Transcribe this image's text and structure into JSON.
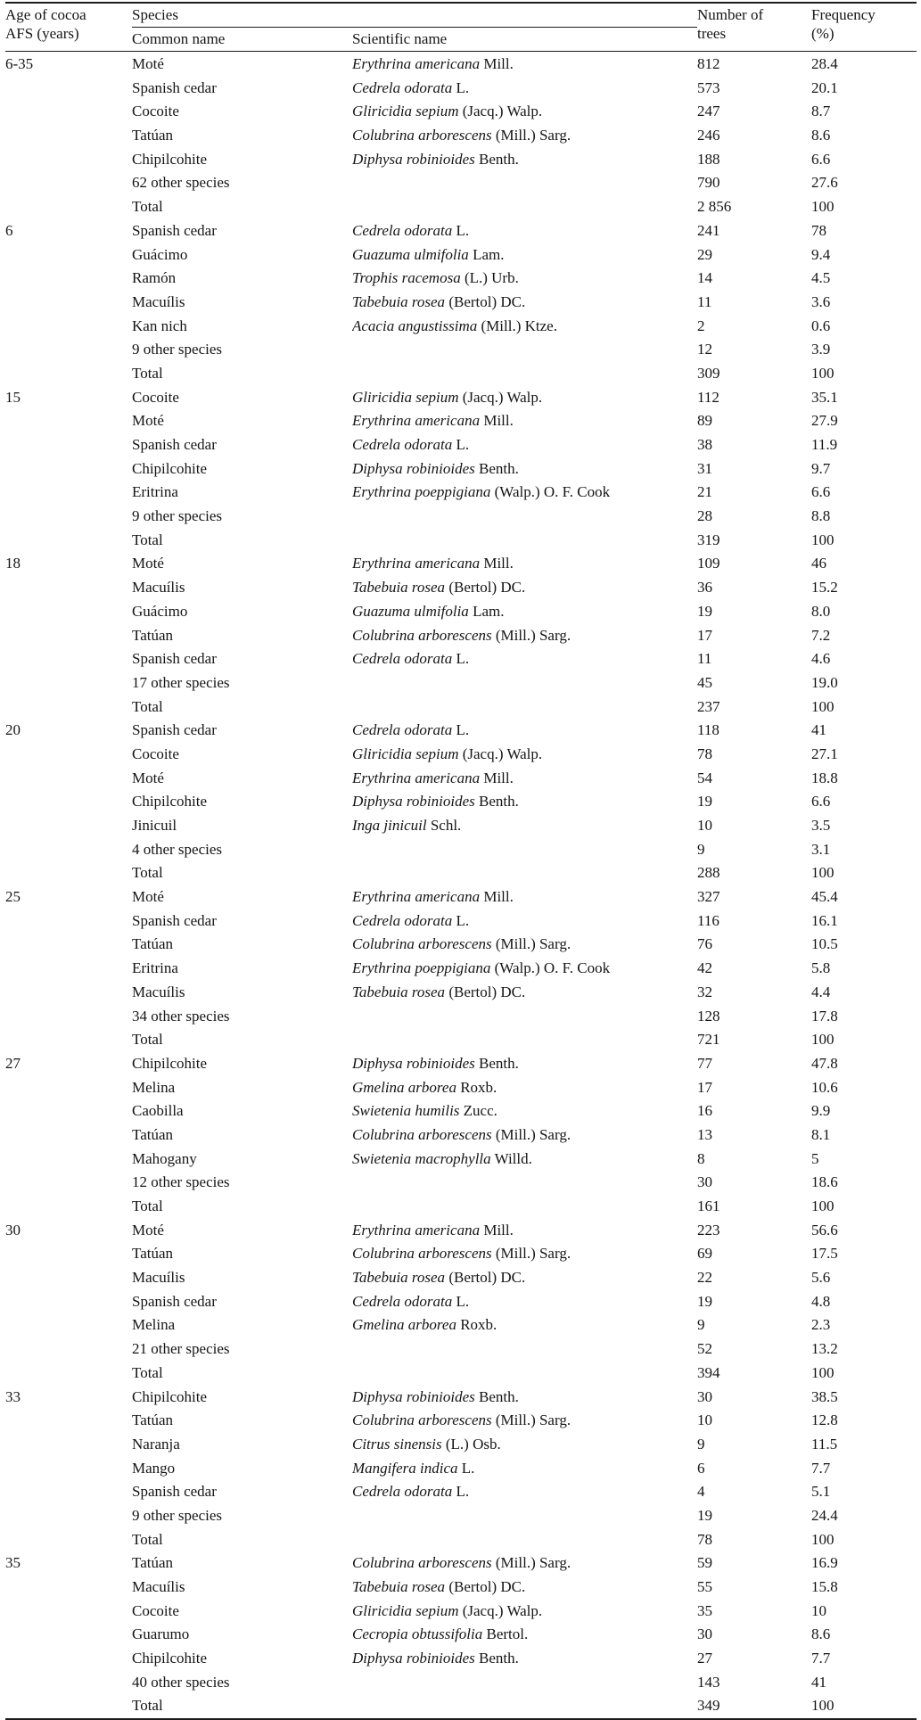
{
  "table": {
    "headers": {
      "age": "Age of cocoa AFS (years)",
      "species": "Species",
      "common_name": "Common name",
      "scientific_name": "Scientific name",
      "number_of_trees": "Number of trees",
      "frequency": "Frequency (%)"
    },
    "groups": [
      {
        "age": "6-35",
        "rows": [
          {
            "common": "Moté",
            "sci": "Erythrina americana",
            "auth": "Mill.",
            "trees": "812",
            "freq": "28.4"
          },
          {
            "common": "Spanish cedar",
            "sci": "Cedrela odorata",
            "auth": "L.",
            "trees": "573",
            "freq": "20.1"
          },
          {
            "common": "Cocoite",
            "sci": "Gliricidia sepium",
            "auth": "(Jacq.) Walp.",
            "trees": "247",
            "freq": "8.7"
          },
          {
            "common": "Tatúan",
            "sci": "Colubrina arborescens",
            "auth": "(Mill.) Sarg.",
            "trees": "246",
            "freq": "8.6"
          },
          {
            "common": "Chipilcohite",
            "sci": "Diphysa robinioides",
            "auth": "Benth.",
            "trees": "188",
            "freq": "6.6"
          },
          {
            "common": "62 other species",
            "sci": "",
            "auth": "",
            "trees": "790",
            "freq": "27.6"
          },
          {
            "common": "Total",
            "sci": "",
            "auth": "",
            "trees": "2 856",
            "freq": "100"
          }
        ]
      },
      {
        "age": "6",
        "rows": [
          {
            "common": "Spanish cedar",
            "sci": "Cedrela odorata",
            "auth": "L.",
            "trees": "241",
            "freq": "78"
          },
          {
            "common": "Guácimo",
            "sci": "Guazuma ulmifolia",
            "auth": "Lam.",
            "trees": "29",
            "freq": "9.4"
          },
          {
            "common": "Ramón",
            "sci": "Trophis racemosa",
            "auth": "(L.) Urb.",
            "trees": "14",
            "freq": "4.5"
          },
          {
            "common": "Macuílis",
            "sci": "Tabebuia rosea",
            "auth": "(Bertol) DC.",
            "trees": "11",
            "freq": "3.6"
          },
          {
            "common": "Kan nich",
            "sci": "Acacia angustissima",
            "auth": "(Mill.) Ktze.",
            "trees": "2",
            "freq": "0.6"
          },
          {
            "common": "9 other species",
            "sci": "",
            "auth": "",
            "trees": "12",
            "freq": "3.9"
          },
          {
            "common": "Total",
            "sci": "",
            "auth": "",
            "trees": "309",
            "freq": "100"
          }
        ]
      },
      {
        "age": "15",
        "rows": [
          {
            "common": "Cocoite",
            "sci": "Gliricidia sepium",
            "auth": "(Jacq.) Walp.",
            "trees": "112",
            "freq": "35.1"
          },
          {
            "common": "Moté",
            "sci": "Erythrina americana",
            "auth": "Mill.",
            "trees": "89",
            "freq": "27.9"
          },
          {
            "common": "Spanish cedar",
            "sci": "Cedrela odorata",
            "auth": "L.",
            "trees": "38",
            "freq": "11.9"
          },
          {
            "common": "Chipilcohite",
            "sci": "Diphysa robinioides",
            "auth": "Benth.",
            "trees": "31",
            "freq": "9.7"
          },
          {
            "common": "Eritrina",
            "sci": "Erythrina poeppigiana",
            "auth": "(Walp.) O. F. Cook",
            "trees": "21",
            "freq": "6.6"
          },
          {
            "common": "9 other species",
            "sci": "",
            "auth": "",
            "trees": "28",
            "freq": "8.8"
          },
          {
            "common": "Total",
            "sci": "",
            "auth": "",
            "trees": "319",
            "freq": "100"
          }
        ]
      },
      {
        "age": "18",
        "rows": [
          {
            "common": "Moté",
            "sci": "Erythrina americana",
            "auth": "Mill.",
            "trees": "109",
            "freq": "46"
          },
          {
            "common": "Macuílis",
            "sci": "Tabebuia rosea",
            "auth": "(Bertol) DC.",
            "trees": "36",
            "freq": "15.2"
          },
          {
            "common": "Guácimo",
            "sci": "Guazuma ulmifolia",
            "auth": "Lam.",
            "trees": "19",
            "freq": "8.0"
          },
          {
            "common": "Tatúan",
            "sci": "Colubrina arborescens",
            "auth": "(Mill.) Sarg.",
            "trees": "17",
            "freq": "7.2"
          },
          {
            "common": "Spanish cedar",
            "sci": "Cedrela odorata",
            "auth": "L.",
            "trees": "11",
            "freq": "4.6"
          },
          {
            "common": "17 other species",
            "sci": "",
            "auth": "",
            "trees": "45",
            "freq": "19.0"
          },
          {
            "common": "Total",
            "sci": "",
            "auth": "",
            "trees": "237",
            "freq": "100"
          }
        ]
      },
      {
        "age": "20",
        "rows": [
          {
            "common": "Spanish cedar",
            "sci": "Cedrela odorata",
            "auth": "L.",
            "trees": "118",
            "freq": "41"
          },
          {
            "common": "Cocoite",
            "sci": "Gliricidia sepium",
            "auth": "(Jacq.) Walp.",
            "trees": "78",
            "freq": "27.1"
          },
          {
            "common": "Moté",
            "sci": "Erythrina americana",
            "auth": "Mill.",
            "trees": "54",
            "freq": "18.8"
          },
          {
            "common": "Chipilcohite",
            "sci": "Diphysa robinioides",
            "auth": "Benth.",
            "trees": "19",
            "freq": "6.6"
          },
          {
            "common": "Jinicuil",
            "sci": "Inga jinicuil",
            "auth": "Schl.",
            "trees": "10",
            "freq": "3.5"
          },
          {
            "common": "4 other species",
            "sci": "",
            "auth": "",
            "trees": "9",
            "freq": "3.1"
          },
          {
            "common": "Total",
            "sci": "",
            "auth": "",
            "trees": "288",
            "freq": "100"
          }
        ]
      },
      {
        "age": "25",
        "rows": [
          {
            "common": "Moté",
            "sci": "Erythrina americana",
            "auth": "Mill.",
            "trees": "327",
            "freq": "45.4"
          },
          {
            "common": "Spanish cedar",
            "sci": "Cedrela odorata",
            "auth": "L.",
            "trees": "116",
            "freq": "16.1"
          },
          {
            "common": "Tatúan",
            "sci": "Colubrina arborescens",
            "auth": "(Mill.) Sarg.",
            "trees": "76",
            "freq": "10.5"
          },
          {
            "common": "Eritrina",
            "sci": "Erythrina poeppigiana",
            "auth": "(Walp.) O. F. Cook",
            "trees": "42",
            "freq": "5.8"
          },
          {
            "common": "Macuílis",
            "sci": "Tabebuia rosea",
            "auth": "(Bertol) DC.",
            "trees": "32",
            "freq": "4.4"
          },
          {
            "common": "34 other species",
            "sci": "",
            "auth": "",
            "trees": "128",
            "freq": "17.8"
          },
          {
            "common": "Total",
            "sci": "",
            "auth": "",
            "trees": "721",
            "freq": "100"
          }
        ]
      },
      {
        "age": "27",
        "rows": [
          {
            "common": "Chipilcohite",
            "sci": "Diphysa robinioides",
            "auth": "Benth.",
            "trees": "77",
            "freq": "47.8"
          },
          {
            "common": "Melina",
            "sci": "Gmelina arborea",
            "auth": "Roxb.",
            "trees": "17",
            "freq": "10.6"
          },
          {
            "common": "Caobilla",
            "sci": "Swietenia humilis",
            "auth": "Zucc.",
            "trees": "16",
            "freq": "9.9"
          },
          {
            "common": "Tatúan",
            "sci": "Colubrina arborescens",
            "auth": "(Mill.) Sarg.",
            "trees": "13",
            "freq": "8.1"
          },
          {
            "common": "Mahogany",
            "sci": "Swietenia macrophylla",
            "auth": "Willd.",
            "trees": "8",
            "freq": "5"
          },
          {
            "common": "12 other species",
            "sci": "",
            "auth": "",
            "trees": "30",
            "freq": "18.6"
          },
          {
            "common": "Total",
            "sci": "",
            "auth": "",
            "trees": "161",
            "freq": "100"
          }
        ]
      },
      {
        "age": "30",
        "rows": [
          {
            "common": "Moté",
            "sci": "Erythrina americana",
            "auth": "Mill.",
            "trees": "223",
            "freq": "56.6"
          },
          {
            "common": "Tatúan",
            "sci": "Colubrina arborescens",
            "auth": "(Mill.) Sarg.",
            "trees": "69",
            "freq": "17.5"
          },
          {
            "common": "Macuílis",
            "sci": "Tabebuia rosea",
            "auth": "(Bertol) DC.",
            "trees": "22",
            "freq": "5.6"
          },
          {
            "common": "Spanish cedar",
            "sci": "Cedrela odorata",
            "auth": "L.",
            "trees": "19",
            "freq": "4.8"
          },
          {
            "common": "Melina",
            "sci": "Gmelina arborea",
            "auth": "Roxb.",
            "trees": "9",
            "freq": "2.3"
          },
          {
            "common": "21 other species",
            "sci": "",
            "auth": "",
            "trees": "52",
            "freq": "13.2"
          },
          {
            "common": "Total",
            "sci": "",
            "auth": "",
            "trees": "394",
            "freq": "100"
          }
        ]
      },
      {
        "age": "33",
        "rows": [
          {
            "common": "Chipilcohite",
            "sci": "Diphysa robinioides",
            "auth": "Benth.",
            "trees": "30",
            "freq": "38.5"
          },
          {
            "common": "Tatúan",
            "sci": "Colubrina arborescens",
            "auth": "(Mill.) Sarg.",
            "trees": "10",
            "freq": "12.8"
          },
          {
            "common": "Naranja",
            "sci": "Citrus sinensis",
            "auth": "(L.) Osb.",
            "trees": "9",
            "freq": "11.5"
          },
          {
            "common": "Mango",
            "sci": "Mangifera indica",
            "auth": "L.",
            "trees": "6",
            "freq": "7.7"
          },
          {
            "common": "Spanish cedar",
            "sci": "Cedrela odorata",
            "auth": "L.",
            "trees": "4",
            "freq": "5.1"
          },
          {
            "common": "9 other species",
            "sci": "",
            "auth": "",
            "trees": "19",
            "freq": "24.4"
          },
          {
            "common": "Total",
            "sci": "",
            "auth": "",
            "trees": "78",
            "freq": "100"
          }
        ]
      },
      {
        "age": "35",
        "rows": [
          {
            "common": "Tatúan",
            "sci": "Colubrina arborescens",
            "auth": "(Mill.) Sarg.",
            "trees": "59",
            "freq": "16.9"
          },
          {
            "common": "Macuílis",
            "sci": "Tabebuia rosea",
            "auth": "(Bertol) DC.",
            "trees": "55",
            "freq": "15.8"
          },
          {
            "common": "Cocoite",
            "sci": "Gliricidia sepium",
            "auth": "(Jacq.) Walp.",
            "trees": "35",
            "freq": "10"
          },
          {
            "common": "Guarumo",
            "sci": "Cecropia obtussifolia",
            "auth": "Bertol.",
            "trees": "30",
            "freq": "8.6"
          },
          {
            "common": "Chipilcohite",
            "sci": "Diphysa robinioides",
            "auth": "Benth.",
            "trees": "27",
            "freq": "7.7"
          },
          {
            "common": "40 other species",
            "sci": "",
            "auth": "",
            "trees": "143",
            "freq": "41"
          },
          {
            "common": "Total",
            "sci": "",
            "auth": "",
            "trees": "349",
            "freq": "100"
          }
        ]
      }
    ]
  }
}
